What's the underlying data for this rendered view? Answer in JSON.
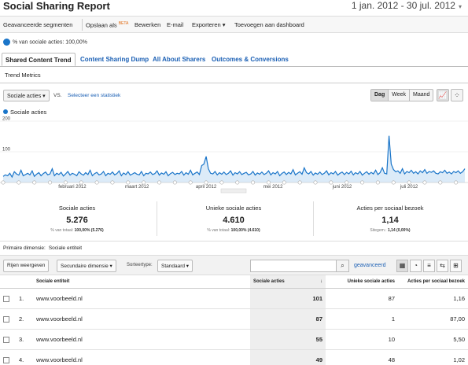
{
  "header": {
    "title": "Social Sharing Report",
    "date_range": "1 jan. 2012 - 30 jul. 2012",
    "date_arrow": "▾"
  },
  "toolbar": {
    "segments": "Geavanceerde segmenten",
    "save_as": "Opslaan als",
    "beta": "BETA",
    "edit": "Bewerken",
    "email": "E-mail",
    "export": "Exporteren ▾",
    "add_dashboard": "Toevoegen aan dashboard"
  },
  "segment": {
    "label": "% van sociale acties: 100,00%"
  },
  "tabs": [
    {
      "label": "Shared Content Trend",
      "active": true
    },
    {
      "label": "Content Sharing Dump",
      "active": false
    },
    {
      "label": "All About Sharers",
      "active": false
    },
    {
      "label": "Outcomes & Conversions",
      "active": false
    }
  ],
  "trend_metrics": "Trend Metrics",
  "chart_controls": {
    "metric_select": "Sociale acties",
    "vs": "VS.",
    "select_stat": "Selecteer een statistiek",
    "granularity": [
      "Dag",
      "Week",
      "Maand"
    ],
    "granularity_selected": "Dag",
    "line_icon": "line-chart-icon",
    "motion_icon": "motion-chart-icon"
  },
  "chart_data": {
    "type": "line",
    "legend": "Sociale acties",
    "series_color": "#1a75c9",
    "y_ticks": [
      100,
      200
    ],
    "ylim": [
      0,
      200
    ],
    "x_ticks": [
      "februari 2012",
      "maart 2012",
      "april 2012",
      "mei 2012",
      "juni 2012",
      "juli 2012"
    ],
    "x_tick_day_index": [
      31,
      60,
      91,
      121,
      152,
      182
    ],
    "series": [
      {
        "values": [
          20,
          25,
          22,
          30,
          18,
          35,
          28,
          24,
          40,
          22,
          26,
          30,
          25,
          38,
          20,
          27,
          32,
          22,
          29,
          34,
          25,
          28,
          45,
          22,
          30,
          26,
          33,
          21,
          28,
          36,
          24,
          30,
          27,
          22,
          35,
          28,
          24,
          32,
          26,
          40,
          22,
          29,
          33,
          25,
          28,
          36,
          22,
          30,
          27,
          34,
          25,
          29,
          38,
          22,
          31,
          26,
          35,
          24,
          28,
          32,
          27,
          25,
          36,
          22,
          30,
          28,
          34,
          26,
          29,
          38,
          24,
          31,
          27,
          35,
          22,
          29,
          33,
          26,
          30,
          28,
          36,
          24,
          32,
          27,
          40,
          25,
          30,
          34,
          26,
          55,
          60,
          85,
          45,
          30,
          28,
          36,
          25,
          32,
          27,
          34,
          26,
          30,
          38,
          24,
          32,
          28,
          35,
          26,
          30,
          33,
          25,
          28,
          36,
          24,
          31,
          27,
          34,
          26,
          30,
          38,
          25,
          32,
          28,
          36,
          22,
          30,
          34,
          26,
          33,
          28,
          42,
          25,
          30,
          35,
          27,
          48,
          32,
          28,
          36,
          24,
          31,
          27,
          34,
          26,
          30,
          38,
          25,
          32,
          28,
          36,
          24,
          30,
          34,
          26,
          33,
          28,
          37,
          25,
          32,
          28,
          36,
          24,
          30,
          35,
          27,
          33,
          28,
          40,
          26,
          32,
          48,
          30,
          28,
          152,
          60,
          42,
          35,
          38,
          30,
          45,
          28,
          36,
          32,
          40,
          30,
          35,
          28,
          38,
          32,
          42,
          30,
          36,
          33,
          38,
          30,
          28,
          35,
          32,
          40,
          30,
          34,
          28,
          36,
          32,
          38,
          30,
          35,
          45
        ]
      }
    ]
  },
  "stats": [
    {
      "label": "Sociale acties",
      "value": "5.276",
      "sub_prefix": "% van totaal:",
      "sub_value": "100,00% (5.276)"
    },
    {
      "label": "Unieke sociale acties",
      "value": "4.610",
      "sub_prefix": "% van totaal:",
      "sub_value": "100,00% (4.610)"
    },
    {
      "label": "Acties per sociaal bezoek",
      "value": "1,14",
      "sub_prefix": "Sitegem.:",
      "sub_value": "1,14 (0,00%)"
    }
  ],
  "dimension": {
    "label": "Primaire dimensie:",
    "value": "Sociale entiteit"
  },
  "table_controls": {
    "plot_rows": "Rijen weergeven",
    "secondary": "Secundaire dimensie ▾",
    "sort_type_label": "Sorteertype:",
    "sort_type": "Standaard ▾",
    "search_placeholder": "",
    "advanced": "geavanceerd"
  },
  "table": {
    "headers": [
      "Sociale entiteit",
      "Sociale acties",
      "Unieke sociale acties",
      "Acties per sociaal bezoek"
    ],
    "sort_arrow": "↓",
    "rows": [
      {
        "idx": "1.",
        "entity": "www.voorbeeld.nl",
        "actions": "101",
        "unique": "87",
        "per_visit": "1,16"
      },
      {
        "idx": "2.",
        "entity": "www.voorbeeld.nl",
        "actions": "87",
        "unique": "1",
        "per_visit": "87,00"
      },
      {
        "idx": "3.",
        "entity": "www.voorbeeld.nl",
        "actions": "55",
        "unique": "10",
        "per_visit": "5,50"
      },
      {
        "idx": "4.",
        "entity": "www.voorbeeld.nl",
        "actions": "49",
        "unique": "48",
        "per_visit": "1,02"
      }
    ]
  }
}
